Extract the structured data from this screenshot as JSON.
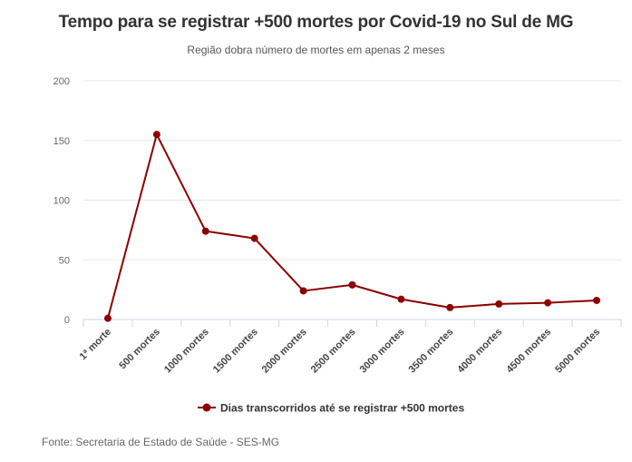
{
  "chart_data": {
    "type": "line",
    "title": "Tempo para se registrar +500 mortes por Covid-19 no Sul de MG",
    "subtitle": "Região dobra número de mortes em apenas 2 meses",
    "categories": [
      "1ª morte",
      "500 mortes",
      "1000 mortes",
      "1500 mortes",
      "2000 mortes",
      "2500 mortes",
      "3000 mortes",
      "3500 mortes",
      "4000 mortes",
      "4500 mortes",
      "5000 mortes"
    ],
    "series": [
      {
        "name": "Dias transcorridos até se registrar +500 mortes",
        "values": [
          1,
          155,
          74,
          68,
          24,
          29,
          17,
          10,
          13,
          14,
          16
        ],
        "color": "#8b0000"
      }
    ],
    "y_ticks": [
      "0",
      "50",
      "100",
      "150",
      "200"
    ],
    "ylim": [
      0,
      200
    ],
    "grid": true,
    "legend": "bottom-center"
  },
  "source": "Fonte: Secretaria de Estado de Saúde - SES-MG",
  "colors": {
    "series": "#8b0000",
    "grid": "#e6e6e6",
    "axis": "#ccd6eb"
  }
}
